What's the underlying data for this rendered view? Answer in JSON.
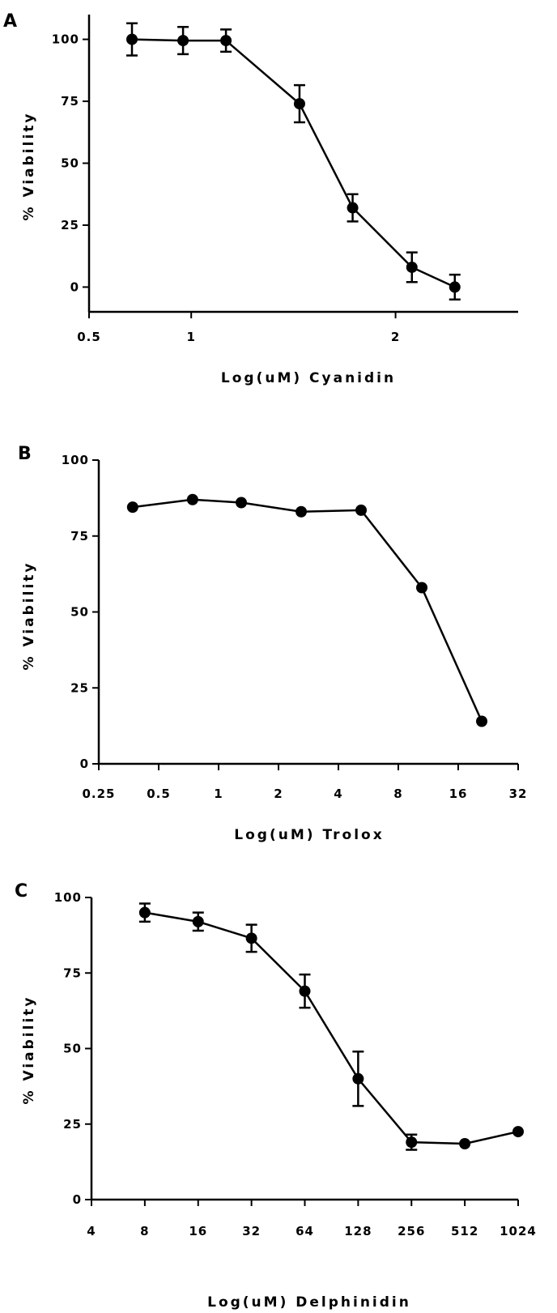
{
  "chart_data": [
    {
      "panel": "A",
      "type": "line",
      "xlabel": "Log(uM) Cyanidin",
      "ylabel": "% Viability",
      "xlim": [
        0.5,
        2.6
      ],
      "ylim": [
        -10,
        110
      ],
      "xticks": [
        0.5,
        1,
        2
      ],
      "xtick_labels": [
        "0.5",
        "1",
        "2"
      ],
      "yticks": [
        0,
        25,
        50,
        75,
        100
      ],
      "ytick_labels": [
        "0",
        "25",
        "50",
        "75",
        "100"
      ],
      "points": [
        {
          "x": 0.71,
          "y": 100,
          "err": 6.5
        },
        {
          "x": 0.96,
          "y": 99.5,
          "err": 5.5
        },
        {
          "x": 1.17,
          "y": 99.5,
          "err": 4.5
        },
        {
          "x": 1.53,
          "y": 74,
          "err": 7.5
        },
        {
          "x": 1.79,
          "y": 32,
          "err": 5.5
        },
        {
          "x": 2.08,
          "y": 8,
          "err": 6
        },
        {
          "x": 2.29,
          "y": 0,
          "err": 5
        }
      ],
      "grid": false
    },
    {
      "panel": "B",
      "type": "line",
      "xlabel": "Log(uM) Trolox",
      "ylabel": "% Viability",
      "xscale": "log2",
      "xlim": [
        0.25,
        32
      ],
      "ylim": [
        0,
        100
      ],
      "xticks": [
        0.25,
        0.5,
        1,
        2,
        4,
        8,
        16,
        32
      ],
      "xtick_labels": [
        "0.25",
        "0.5",
        "1",
        "2",
        "4",
        "8",
        "16",
        "32"
      ],
      "yticks": [
        0,
        25,
        50,
        75,
        100
      ],
      "ytick_labels": [
        "0",
        "25",
        "50",
        "75",
        "100"
      ],
      "points": [
        {
          "x": 0.37,
          "y": 84.5
        },
        {
          "x": 0.74,
          "y": 87
        },
        {
          "x": 1.3,
          "y": 86
        },
        {
          "x": 2.6,
          "y": 83
        },
        {
          "x": 5.2,
          "y": 83.5
        },
        {
          "x": 10.5,
          "y": 58
        },
        {
          "x": 21,
          "y": 14
        }
      ],
      "grid": false
    },
    {
      "panel": "C",
      "type": "line",
      "xlabel": "Log(uM) Delphinidin",
      "ylabel": "% Viability",
      "xscale": "log2",
      "xlim": [
        4,
        1024
      ],
      "ylim": [
        0,
        100
      ],
      "xticks": [
        4,
        8,
        16,
        32,
        64,
        128,
        256,
        512,
        1024
      ],
      "xtick_labels": [
        "4",
        "8",
        "16",
        "32",
        "64",
        "128",
        "256",
        "512",
        "1024"
      ],
      "yticks": [
        0,
        25,
        50,
        75,
        100
      ],
      "ytick_labels": [
        "0",
        "25",
        "50",
        "75",
        "100"
      ],
      "points": [
        {
          "x": 8,
          "y": 95,
          "err": 3
        },
        {
          "x": 16,
          "y": 92,
          "err": 3
        },
        {
          "x": 32,
          "y": 86.5,
          "err": 4.5
        },
        {
          "x": 64,
          "y": 69,
          "err": 5.5
        },
        {
          "x": 128,
          "y": 40,
          "err": 9
        },
        {
          "x": 256,
          "y": 19,
          "err": 2.5
        },
        {
          "x": 512,
          "y": 18.5,
          "err": 0
        },
        {
          "x": 1024,
          "y": 22.5,
          "err": 0
        }
      ],
      "grid": false
    }
  ]
}
